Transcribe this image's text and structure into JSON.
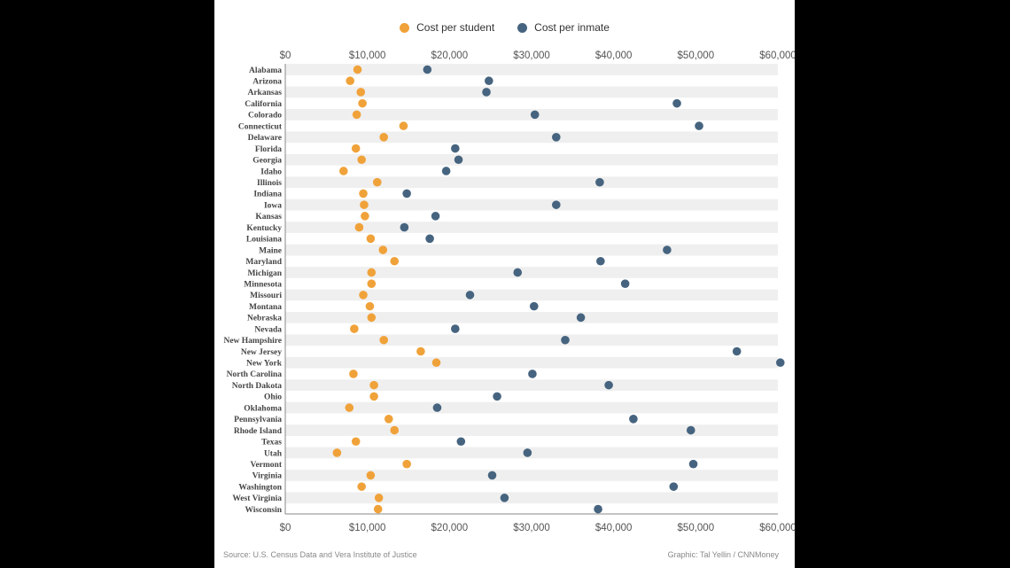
{
  "legend": {
    "student_label": "Cost per student",
    "inmate_label": "Cost per inmate",
    "student_color": "#f0a23a",
    "inmate_color": "#46647f"
  },
  "source": "Source: U.S. Census Data and Vera Institute of Justice",
  "credit": "Graphic: Tal Yellin / CNNMoney",
  "chart_data": {
    "type": "scatter",
    "orientation": "horizontal dot plot",
    "xlim": [
      0,
      60000
    ],
    "x_ticks": [
      0,
      10000,
      20000,
      30000,
      40000,
      50000,
      60000
    ],
    "x_tick_labels": [
      "$0",
      "$10,000",
      "$20,000",
      "$30,000",
      "$40,000",
      "$50,000",
      "$60,000"
    ],
    "axis_positions": [
      "top",
      "bottom"
    ],
    "row_banding": true,
    "categories": [
      "Alabama",
      "Arizona",
      "Arkansas",
      "California",
      "Colorado",
      "Connecticut",
      "Delaware",
      "Florida",
      "Georgia",
      "Idaho",
      "Illinois",
      "Indiana",
      "Iowa",
      "Kansas",
      "Kentucky",
      "Louisiana",
      "Maine",
      "Maryland",
      "Michigan",
      "Minnesota",
      "Missouri",
      "Montana",
      "Nebraska",
      "Nevada",
      "New Hampshire",
      "New Jersey",
      "New York",
      "North Carolina",
      "North Dakota",
      "Ohio",
      "Oklahoma",
      "Pennsylvania",
      "Rhode Island",
      "Texas",
      "Utah",
      "Vermont",
      "Virginia",
      "Washington",
      "West Virginia",
      "Wisconsin"
    ],
    "series": [
      {
        "name": "Cost per student",
        "color": "#f0a23a",
        "values": [
          8800,
          7900,
          9200,
          9400,
          8700,
          14400,
          12000,
          8600,
          9300,
          7100,
          11200,
          9500,
          9600,
          9700,
          9000,
          10400,
          11900,
          13300,
          10500,
          10500,
          9500,
          10300,
          10500,
          8400,
          12000,
          16500,
          18400,
          8300,
          10800,
          10800,
          7800,
          12600,
          13300,
          8600,
          6300,
          14800,
          10400,
          9300,
          11400,
          11300
        ]
      },
      {
        "name": "Cost per inmate",
        "color": "#46647f",
        "values": [
          17300,
          24800,
          24500,
          47700,
          30400,
          50400,
          33000,
          20700,
          21100,
          19600,
          38300,
          14800,
          33000,
          18300,
          14500,
          17600,
          46500,
          38400,
          28300,
          41400,
          22500,
          30300,
          36000,
          20700,
          34100,
          55000,
          60300,
          30100,
          39400,
          25800,
          18500,
          42400,
          49400,
          21400,
          29500,
          49700,
          25200,
          47300,
          26700,
          38100
        ]
      }
    ]
  }
}
